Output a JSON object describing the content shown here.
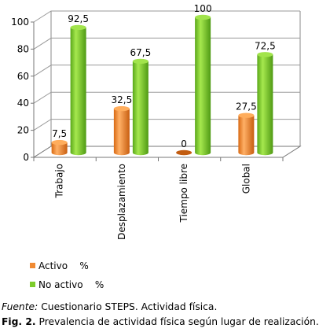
{
  "chart_data": {
    "type": "bar",
    "categories": [
      "Trabajo",
      "Desplazamiento",
      "Tiempo libre",
      "Global"
    ],
    "series": [
      {
        "name": "Activo    %",
        "values": [
          7.5,
          32.5,
          0,
          27.5
        ],
        "labels": [
          "7,5",
          "32,5",
          "0",
          "27,5"
        ],
        "color": "#f08a32"
      },
      {
        "name": "No activo    %",
        "values": [
          92.5,
          67.5,
          100,
          72.5
        ],
        "labels": [
          "92,5",
          "67,5",
          "100",
          "72,5"
        ],
        "color": "#7dcc2a"
      }
    ],
    "ylim": [
      0,
      100
    ],
    "yticks": [
      0,
      20,
      40,
      60,
      80,
      100
    ],
    "grid": true,
    "legend_position": "bottom-left",
    "style": "3d-cylinder"
  },
  "caption": {
    "source_label": "Fuente:",
    "source_text": "Cuestionario STEPS. Actividad física.",
    "fig_label": "Fig. 2.",
    "fig_text": "Prevalencia de actividad física según lugar de realización."
  }
}
